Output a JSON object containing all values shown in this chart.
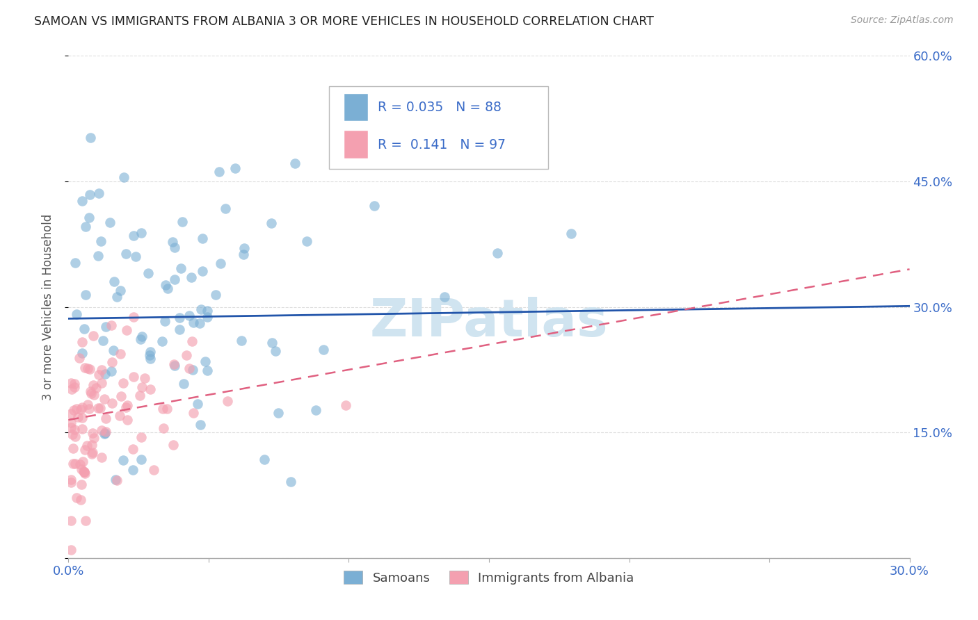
{
  "title": "SAMOAN VS IMMIGRANTS FROM ALBANIA 3 OR MORE VEHICLES IN HOUSEHOLD CORRELATION CHART",
  "source": "Source: ZipAtlas.com",
  "ylabel": "3 or more Vehicles in Household",
  "xlim": [
    0.0,
    0.3
  ],
  "ylim": [
    0.0,
    0.6
  ],
  "xticks": [
    0.0,
    0.05,
    0.1,
    0.15,
    0.2,
    0.25,
    0.3
  ],
  "xticklabels": [
    "0.0%",
    "",
    "",
    "",
    "",
    "",
    "30.0%"
  ],
  "yticks_right": [
    0.0,
    0.15,
    0.3,
    0.45,
    0.6
  ],
  "ytick_right_labels": [
    "",
    "15.0%",
    "30.0%",
    "45.0%",
    "60.0%"
  ],
  "blue_r_val": "0.035",
  "blue_n_val": "88",
  "pink_r_val": "0.141",
  "pink_n_val": "97",
  "legend_blue_label": "Samoans",
  "legend_pink_label": "Immigrants from Albania",
  "blue_color": "#7BAFD4",
  "pink_color": "#F4A0B0",
  "blue_line_color": "#2255AA",
  "pink_line_color": "#E06080",
  "watermark": "ZIPatlas",
  "watermark_color": "#D0E4F0",
  "background_color": "#FFFFFF",
  "blue_R": 0.035,
  "blue_N": 88,
  "pink_R": 0.141,
  "pink_N": 97,
  "blue_intercept": 0.286,
  "blue_slope": 0.05,
  "pink_intercept": 0.165,
  "pink_slope": 0.6,
  "seed_blue": 42,
  "seed_pink": 77
}
